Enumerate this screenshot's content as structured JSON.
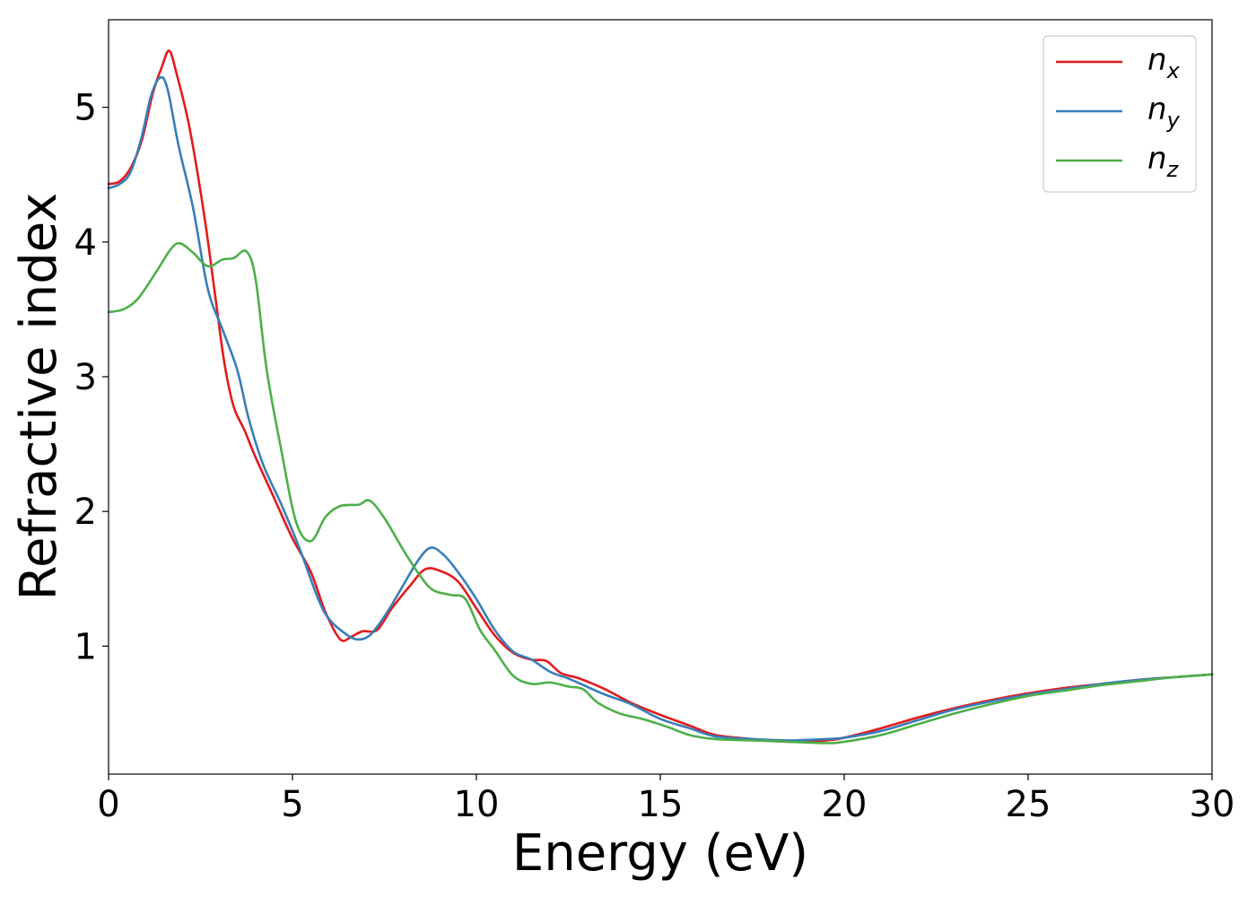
{
  "chart_data": {
    "type": "line",
    "title": "",
    "xlabel": "Energy (eV)",
    "ylabel": "Refractive index",
    "xlim": [
      0,
      30
    ],
    "ylim": [
      0.05,
      5.65
    ],
    "xticks": [
      0,
      5,
      10,
      15,
      20,
      25,
      30
    ],
    "xtick_labels": [
      "0",
      "5",
      "10",
      "15",
      "20",
      "25",
      "30"
    ],
    "yticks": [
      1,
      2,
      3,
      4,
      5
    ],
    "ytick_labels": [
      "1",
      "2",
      "3",
      "4",
      "5"
    ],
    "grid": false,
    "legend_position": "top-right",
    "series": [
      {
        "name": "n_x",
        "label_main": "n",
        "label_sub": "x",
        "color": "#e41a1c",
        "points": [
          [
            0,
            4.43
          ],
          [
            0.3,
            4.45
          ],
          [
            0.6,
            4.55
          ],
          [
            0.9,
            4.75
          ],
          [
            1.2,
            5.1
          ],
          [
            1.45,
            5.3
          ],
          [
            1.65,
            5.42
          ],
          [
            1.85,
            5.25
          ],
          [
            2.2,
            4.85
          ],
          [
            2.6,
            4.2
          ],
          [
            2.9,
            3.6
          ],
          [
            3.15,
            3.1
          ],
          [
            3.4,
            2.78
          ],
          [
            3.7,
            2.6
          ],
          [
            4.0,
            2.4
          ],
          [
            4.5,
            2.1
          ],
          [
            5.0,
            1.8
          ],
          [
            5.5,
            1.55
          ],
          [
            5.9,
            1.25
          ],
          [
            6.3,
            1.05
          ],
          [
            6.6,
            1.07
          ],
          [
            6.9,
            1.11
          ],
          [
            7.3,
            1.12
          ],
          [
            7.7,
            1.28
          ],
          [
            8.2,
            1.45
          ],
          [
            8.6,
            1.57
          ],
          [
            9.0,
            1.56
          ],
          [
            9.5,
            1.48
          ],
          [
            10.0,
            1.28
          ],
          [
            10.5,
            1.08
          ],
          [
            11.0,
            0.95
          ],
          [
            11.5,
            0.9
          ],
          [
            11.9,
            0.89
          ],
          [
            12.3,
            0.8
          ],
          [
            12.8,
            0.76
          ],
          [
            13.5,
            0.68
          ],
          [
            14.2,
            0.58
          ],
          [
            15.0,
            0.49
          ],
          [
            15.8,
            0.41
          ],
          [
            16.5,
            0.34
          ],
          [
            17.5,
            0.31
          ],
          [
            18.5,
            0.29
          ],
          [
            19.5,
            0.3
          ],
          [
            20.0,
            0.32
          ],
          [
            21.0,
            0.39
          ],
          [
            22.0,
            0.47
          ],
          [
            23.0,
            0.54
          ],
          [
            24.0,
            0.6
          ],
          [
            25.0,
            0.65
          ],
          [
            26.0,
            0.69
          ],
          [
            27.0,
            0.72
          ],
          [
            28.0,
            0.75
          ],
          [
            29.0,
            0.77
          ],
          [
            30.0,
            0.79
          ]
        ]
      },
      {
        "name": "n_y",
        "label_main": "n",
        "label_sub": "y",
        "color": "#377eb8",
        "points": [
          [
            0,
            4.4
          ],
          [
            0.3,
            4.43
          ],
          [
            0.6,
            4.52
          ],
          [
            0.9,
            4.78
          ],
          [
            1.15,
            5.08
          ],
          [
            1.4,
            5.22
          ],
          [
            1.6,
            5.14
          ],
          [
            1.9,
            4.72
          ],
          [
            2.3,
            4.25
          ],
          [
            2.7,
            3.65
          ],
          [
            3.1,
            3.35
          ],
          [
            3.5,
            3.05
          ],
          [
            3.8,
            2.7
          ],
          [
            4.2,
            2.35
          ],
          [
            4.7,
            2.05
          ],
          [
            5.2,
            1.72
          ],
          [
            5.7,
            1.35
          ],
          [
            6.0,
            1.2
          ],
          [
            6.4,
            1.1
          ],
          [
            6.75,
            1.05
          ],
          [
            7.1,
            1.08
          ],
          [
            7.5,
            1.22
          ],
          [
            7.9,
            1.4
          ],
          [
            8.4,
            1.63
          ],
          [
            8.75,
            1.73
          ],
          [
            9.1,
            1.68
          ],
          [
            9.5,
            1.55
          ],
          [
            10.0,
            1.35
          ],
          [
            10.5,
            1.12
          ],
          [
            11.0,
            0.96
          ],
          [
            11.5,
            0.9
          ],
          [
            12.0,
            0.81
          ],
          [
            12.5,
            0.76
          ],
          [
            13.0,
            0.7
          ],
          [
            13.5,
            0.64
          ],
          [
            14.2,
            0.57
          ],
          [
            15.0,
            0.46
          ],
          [
            15.8,
            0.39
          ],
          [
            16.5,
            0.33
          ],
          [
            17.5,
            0.31
          ],
          [
            18.5,
            0.3
          ],
          [
            19.5,
            0.31
          ],
          [
            20.0,
            0.32
          ],
          [
            21.0,
            0.37
          ],
          [
            22.0,
            0.45
          ],
          [
            23.0,
            0.53
          ],
          [
            24.0,
            0.59
          ],
          [
            25.0,
            0.64
          ],
          [
            26.0,
            0.68
          ],
          [
            27.0,
            0.72
          ],
          [
            28.0,
            0.75
          ],
          [
            29.0,
            0.77
          ],
          [
            30.0,
            0.79
          ]
        ]
      },
      {
        "name": "n_z",
        "label_main": "n",
        "label_sub": "z",
        "color": "#4daf4a",
        "points": [
          [
            0,
            3.48
          ],
          [
            0.4,
            3.5
          ],
          [
            0.8,
            3.58
          ],
          [
            1.3,
            3.78
          ],
          [
            1.7,
            3.95
          ],
          [
            1.95,
            3.99
          ],
          [
            2.3,
            3.92
          ],
          [
            2.7,
            3.82
          ],
          [
            3.1,
            3.87
          ],
          [
            3.4,
            3.88
          ],
          [
            3.75,
            3.93
          ],
          [
            4.0,
            3.72
          ],
          [
            4.3,
            3.05
          ],
          [
            4.7,
            2.45
          ],
          [
            5.1,
            1.92
          ],
          [
            5.5,
            1.78
          ],
          [
            5.9,
            1.96
          ],
          [
            6.3,
            2.04
          ],
          [
            6.8,
            2.05
          ],
          [
            7.1,
            2.08
          ],
          [
            7.5,
            1.95
          ],
          [
            8.0,
            1.72
          ],
          [
            8.4,
            1.55
          ],
          [
            8.8,
            1.42
          ],
          [
            9.3,
            1.38
          ],
          [
            9.7,
            1.35
          ],
          [
            10.1,
            1.12
          ],
          [
            10.5,
            0.97
          ],
          [
            11.0,
            0.78
          ],
          [
            11.5,
            0.72
          ],
          [
            12.0,
            0.73
          ],
          [
            12.5,
            0.7
          ],
          [
            12.9,
            0.68
          ],
          [
            13.3,
            0.58
          ],
          [
            13.9,
            0.5
          ],
          [
            14.5,
            0.46
          ],
          [
            15.2,
            0.4
          ],
          [
            15.8,
            0.34
          ],
          [
            16.5,
            0.31
          ],
          [
            17.5,
            0.3
          ],
          [
            18.5,
            0.29
          ],
          [
            19.5,
            0.28
          ],
          [
            20.0,
            0.29
          ],
          [
            21.0,
            0.34
          ],
          [
            22.0,
            0.42
          ],
          [
            23.0,
            0.5
          ],
          [
            24.0,
            0.57
          ],
          [
            25.0,
            0.63
          ],
          [
            26.0,
            0.67
          ],
          [
            27.0,
            0.71
          ],
          [
            28.0,
            0.74
          ],
          [
            29.0,
            0.77
          ],
          [
            30.0,
            0.79
          ]
        ]
      }
    ]
  }
}
